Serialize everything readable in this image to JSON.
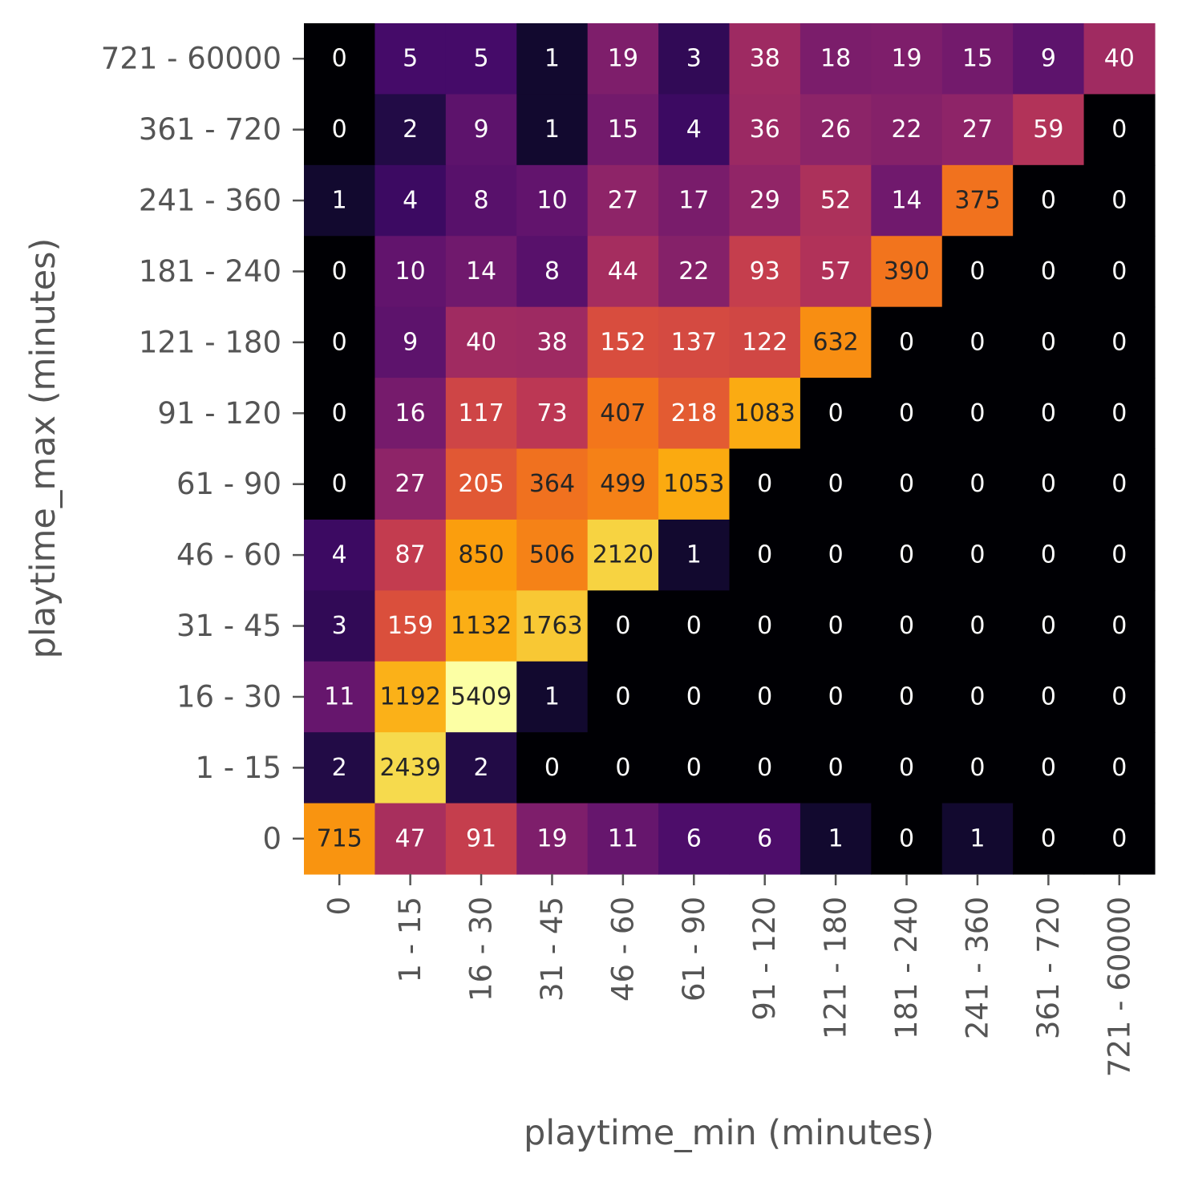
{
  "chart_data": {
    "type": "heatmap",
    "xlabel": "playtime_min (minutes)",
    "ylabel": "playtime_max (minutes)",
    "x_categories": [
      "0",
      "1 - 15",
      "16 - 30",
      "31 - 45",
      "46 - 60",
      "61 - 90",
      "91 - 120",
      "121 - 180",
      "181 - 240",
      "241 - 360",
      "361 - 720",
      "721 - 60000"
    ],
    "y_categories": [
      "721 - 60000",
      "361 - 720",
      "241 - 360",
      "181 - 240",
      "121 - 180",
      "91 - 120",
      "61 - 90",
      "46 - 60",
      "31 - 45",
      "16 - 30",
      "1 - 15",
      "0"
    ],
    "values": [
      [
        0,
        5,
        5,
        1,
        19,
        3,
        38,
        18,
        19,
        15,
        9,
        40
      ],
      [
        0,
        2,
        9,
        1,
        15,
        4,
        36,
        26,
        22,
        27,
        59,
        0
      ],
      [
        1,
        4,
        8,
        10,
        27,
        17,
        29,
        52,
        14,
        375,
        0,
        0
      ],
      [
        0,
        10,
        14,
        8,
        44,
        22,
        93,
        57,
        390,
        0,
        0,
        0
      ],
      [
        0,
        9,
        40,
        38,
        152,
        137,
        122,
        632,
        0,
        0,
        0,
        0
      ],
      [
        0,
        16,
        117,
        73,
        407,
        218,
        1083,
        0,
        0,
        0,
        0,
        0
      ],
      [
        0,
        27,
        205,
        364,
        499,
        1053,
        0,
        0,
        0,
        0,
        0,
        0
      ],
      [
        4,
        87,
        850,
        506,
        2120,
        1,
        0,
        0,
        0,
        0,
        0,
        0
      ],
      [
        3,
        159,
        1132,
        1763,
        0,
        0,
        0,
        0,
        0,
        0,
        0,
        0
      ],
      [
        11,
        1192,
        5409,
        1,
        0,
        0,
        0,
        0,
        0,
        0,
        0,
        0
      ],
      [
        2,
        2439,
        2,
        0,
        0,
        0,
        0,
        0,
        0,
        0,
        0,
        0
      ],
      [
        715,
        47,
        91,
        19,
        11,
        6,
        6,
        1,
        0,
        1,
        0,
        0
      ]
    ],
    "colormap": "inferno",
    "color_scale": "log",
    "annotated": true,
    "colorbar": false,
    "grid": false
  }
}
